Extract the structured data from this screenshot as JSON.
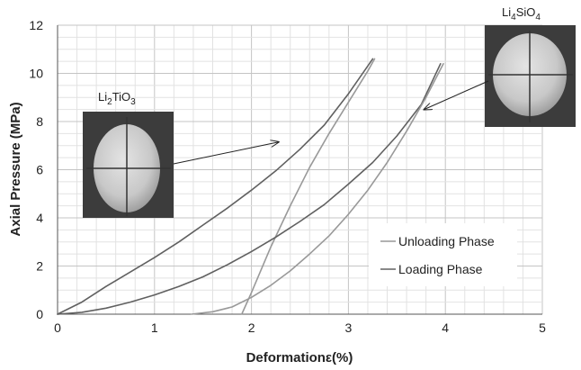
{
  "chart_data": {
    "type": "line",
    "xlabel": "Deformationε(%)",
    "ylabel": "Axial Pressure (MPa)",
    "xlim": [
      0,
      5
    ],
    "ylim": [
      0,
      12
    ],
    "xticks": [
      "0",
      "1",
      "2",
      "3",
      "4",
      "5"
    ],
    "yticks": [
      "0",
      "2",
      "4",
      "6",
      "8",
      "10",
      "12"
    ],
    "grid": true,
    "legend_position": "bottom-right",
    "legend": [
      {
        "label": "Unloading Phase",
        "color": "#999999"
      },
      {
        "label": "Loading Phase",
        "color": "#606060"
      }
    ],
    "series": [
      {
        "specimen": "Li2TiO3",
        "phase": "loading",
        "color": "#606060",
        "x": [
          0,
          0.25,
          0.5,
          0.75,
          1,
          1.25,
          1.5,
          1.75,
          2,
          2.25,
          2.5,
          2.75,
          3,
          3.25
        ],
        "y": [
          0,
          0.5,
          1.15,
          1.75,
          2.35,
          3.0,
          3.7,
          4.4,
          5.15,
          5.95,
          6.85,
          7.85,
          9.15,
          10.6
        ]
      },
      {
        "specimen": "Li2TiO3",
        "phase": "unloading",
        "color": "#999999",
        "x": [
          1.9,
          2.0,
          2.2,
          2.4,
          2.6,
          2.8,
          3.0,
          3.2,
          3.27
        ],
        "y": [
          0,
          0.9,
          2.8,
          4.5,
          6.1,
          7.5,
          8.8,
          10.1,
          10.6
        ]
      },
      {
        "specimen": "Li4SiO4",
        "phase": "loading",
        "color": "#606060",
        "x": [
          0,
          0.25,
          0.5,
          0.75,
          1,
          1.25,
          1.5,
          1.75,
          2,
          2.25,
          2.5,
          2.75,
          3,
          3.25,
          3.5,
          3.75,
          3.95
        ],
        "y": [
          0,
          0.08,
          0.25,
          0.5,
          0.8,
          1.15,
          1.55,
          2.05,
          2.6,
          3.2,
          3.85,
          4.55,
          5.4,
          6.3,
          7.4,
          8.7,
          10.4
        ]
      },
      {
        "specimen": "Li4SiO4",
        "phase": "unloading",
        "color": "#999999",
        "x": [
          1.38,
          1.6,
          1.8,
          2.0,
          2.2,
          2.4,
          2.6,
          2.8,
          3.0,
          3.2,
          3.4,
          3.6,
          3.8,
          3.98
        ],
        "y": [
          0,
          0.1,
          0.3,
          0.7,
          1.2,
          1.8,
          2.5,
          3.25,
          4.15,
          5.15,
          6.3,
          7.6,
          9.0,
          10.4
        ]
      }
    ],
    "insets": [
      {
        "label_base": "Li",
        "label_sub1": "2",
        "label_mid": "TiO",
        "label_sub2": "3",
        "arrow_target": {
          "x": 2.28,
          "y": 7.15
        }
      },
      {
        "label_base": "Li",
        "label_sub1": "4",
        "label_mid": "SiO",
        "label_sub2": "4",
        "arrow_target": {
          "x": 3.78,
          "y": 8.5
        }
      }
    ]
  }
}
